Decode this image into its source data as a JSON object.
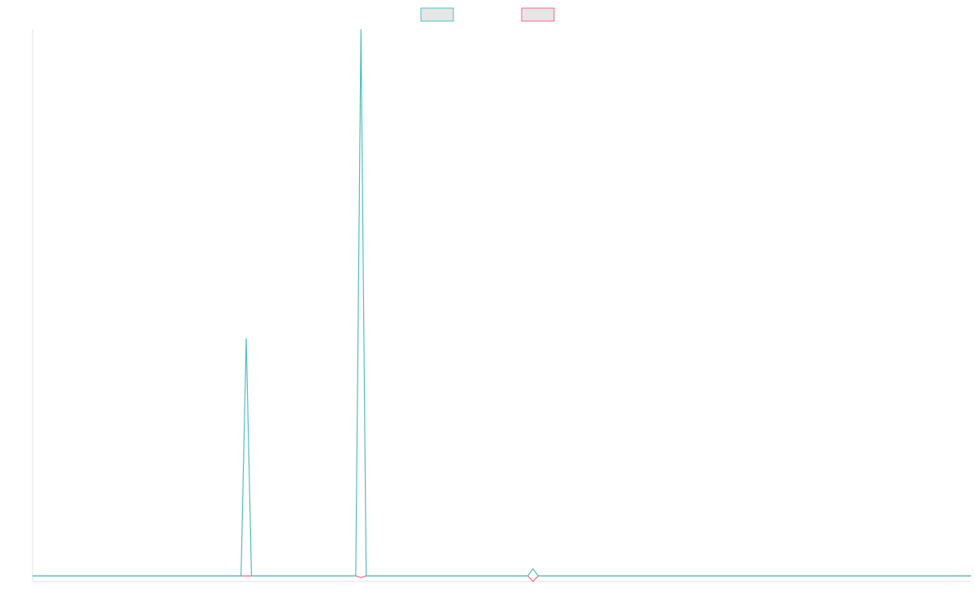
{
  "chart_data": {
    "type": "line",
    "legend": "top",
    "grid": false,
    "xlim": [
      0,
      180
    ],
    "ylim": [
      -1,
      100
    ],
    "series": [
      {
        "color": "#4bc0c0",
        "x": [
          0,
          40,
          41,
          42,
          62,
          63,
          64,
          95,
          96,
          97,
          180
        ],
        "values": [
          0,
          0,
          43.5,
          0,
          0,
          100,
          0,
          0,
          1.3,
          0,
          0
        ]
      },
      {
        "color": "#ff6384",
        "x": [
          0,
          62,
          63,
          64,
          95,
          96,
          97,
          180
        ],
        "values": [
          0,
          0,
          -0.3,
          0,
          0,
          -1,
          0,
          0
        ]
      }
    ]
  }
}
